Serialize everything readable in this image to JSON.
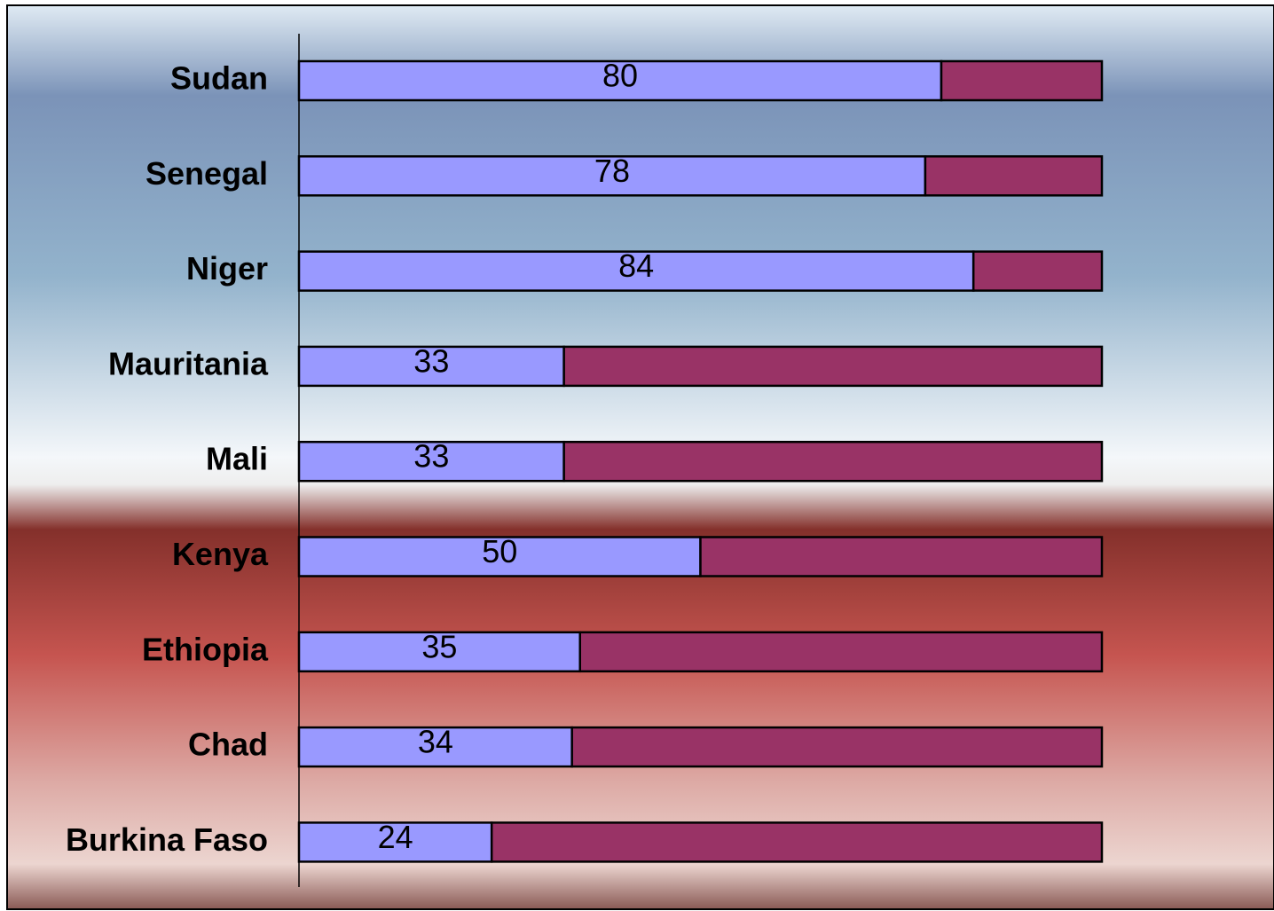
{
  "chart_data": {
    "type": "stacked-bar-horizontal",
    "categories": [
      "Sudan",
      "Senegal",
      "Niger",
      "Mauritania",
      "Mali",
      "Kenya",
      "Ethiopia",
      "Chad",
      "Burkina Faso"
    ],
    "series": [
      {
        "color": "#9999ff",
        "values": [
          80,
          78,
          84,
          33,
          33,
          50,
          35,
          34,
          24
        ]
      },
      {
        "color": "#993366",
        "values": [
          20,
          22,
          16,
          67,
          67,
          50,
          65,
          66,
          76
        ]
      }
    ],
    "xlim": [
      0,
      100
    ]
  }
}
